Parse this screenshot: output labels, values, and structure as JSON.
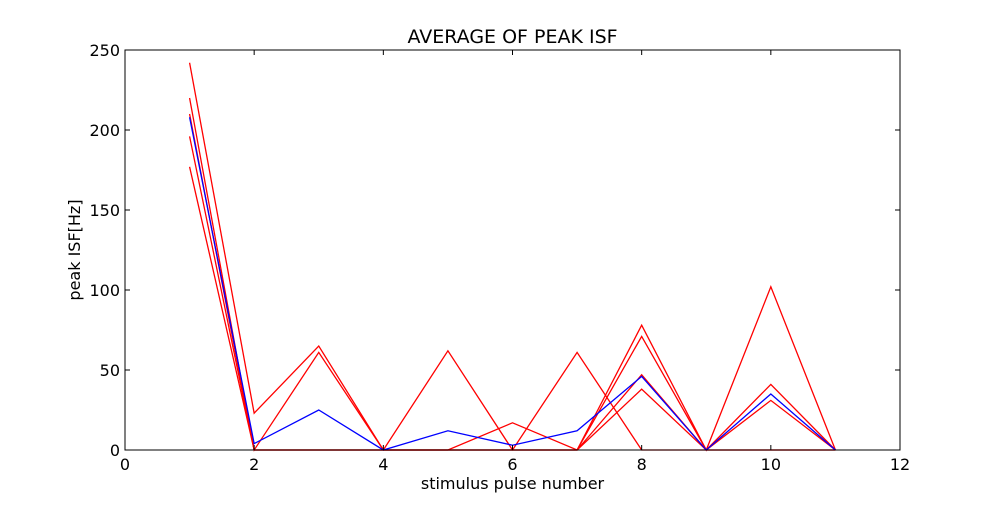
{
  "chart_data": {
    "type": "line",
    "title": "AVERAGE OF PEAK ISF",
    "xlabel": "stimulus pulse number",
    "ylabel": "peak ISF[Hz]",
    "xlim": [
      0,
      12
    ],
    "ylim": [
      0,
      250
    ],
    "xticks": [
      0,
      2,
      4,
      6,
      8,
      10,
      12
    ],
    "yticks": [
      0,
      50,
      100,
      150,
      200,
      250
    ],
    "grid": false,
    "legend": "none",
    "x": [
      1,
      2,
      3,
      4,
      5,
      6,
      7,
      8,
      9,
      10,
      11
    ],
    "series": [
      {
        "color": "#ff0000",
        "values": [
          242,
          23,
          65,
          0,
          0,
          0,
          0,
          78,
          0,
          102,
          0
        ]
      },
      {
        "color": "#ff0000",
        "values": [
          220,
          0,
          61,
          0,
          0,
          0,
          0,
          38,
          0,
          41,
          0
        ]
      },
      {
        "color": "#ff0000",
        "values": [
          210,
          0,
          0,
          0,
          62,
          0,
          0,
          71,
          0,
          31,
          0
        ]
      },
      {
        "color": "#ff0000",
        "values": [
          196,
          0,
          0,
          0,
          0,
          0,
          61,
          0,
          0,
          0,
          0
        ]
      },
      {
        "color": "#ff0000",
        "values": [
          177,
          0,
          0,
          0,
          0,
          17,
          0,
          47,
          0,
          0,
          0
        ]
      },
      {
        "color": "#0000ff",
        "values": [
          208,
          4,
          25,
          0,
          12,
          3,
          12,
          46,
          0,
          35,
          0
        ]
      }
    ]
  }
}
